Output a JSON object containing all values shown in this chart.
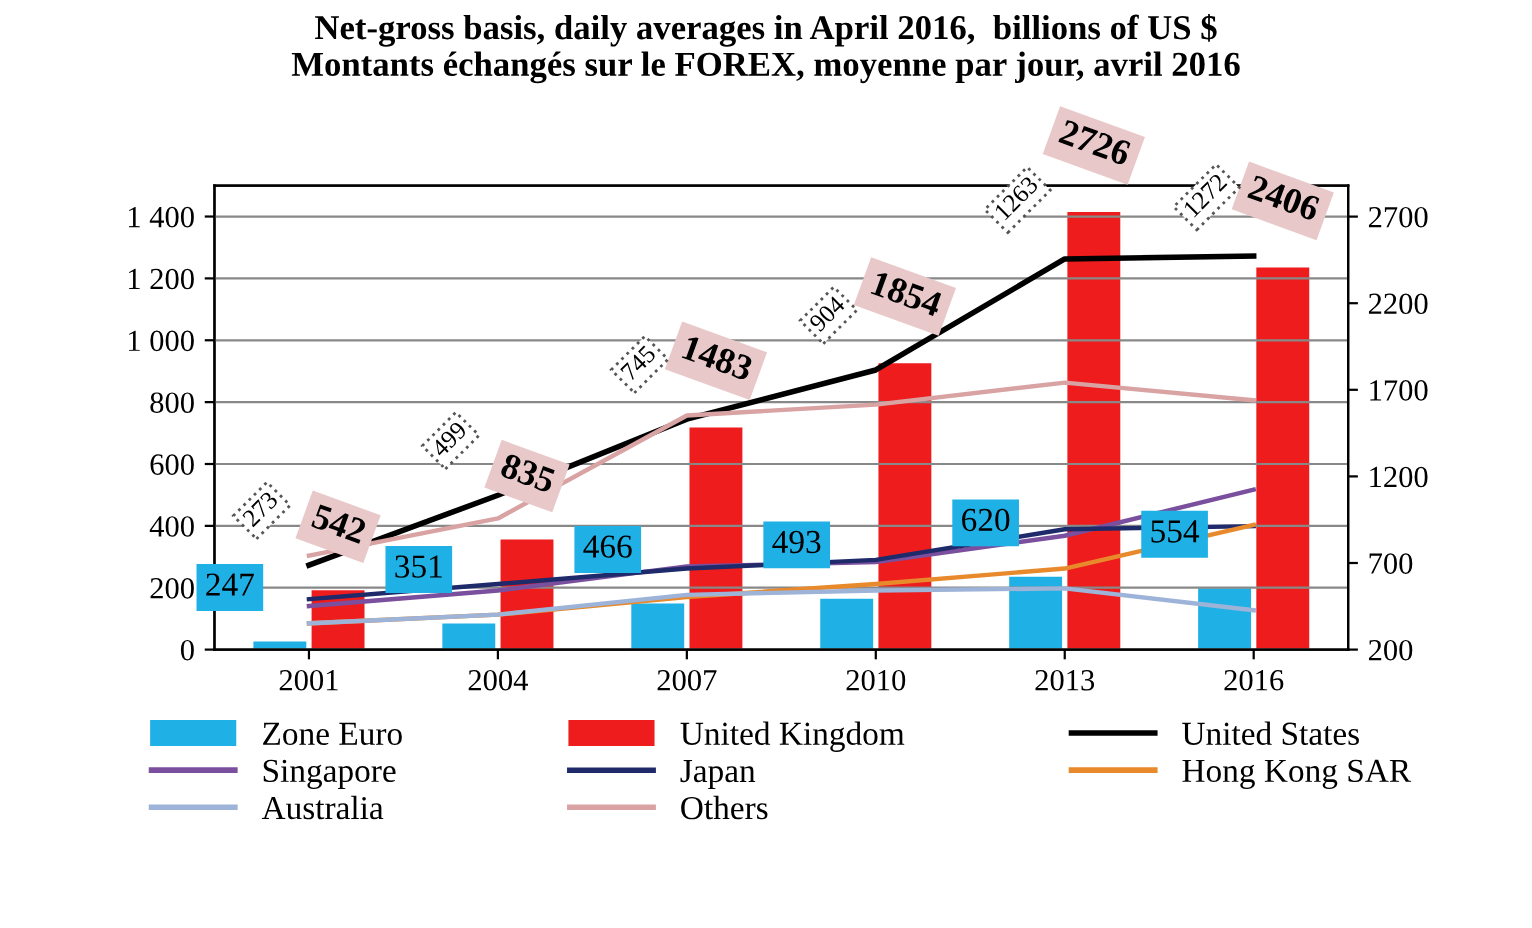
{
  "chart_data": {
    "type": "bar",
    "title": "Net-gross basis, daily averages in April 2016,  billions of US $\nMontants échangés sur le FOREX, moyenne par jour, avril 2016",
    "categories": [
      "2001",
      "2004",
      "2007",
      "2010",
      "2013",
      "2016"
    ],
    "series": [
      {
        "name": "Zone Euro",
        "axis": "y2",
        "color": "#1fb0e6",
        "values": [
          247,
          351,
          466,
          493,
          620,
          554
        ],
        "value_labels": [
          "247",
          "351",
          "466",
          "493",
          "620",
          "554"
        ]
      },
      {
        "name": "United Kingdom",
        "axis": "y2",
        "color": "#ee1c1c",
        "values": [
          542,
          835,
          1483,
          1854,
          2726,
          2406
        ],
        "value_labels": [
          "542",
          "835",
          "1483",
          "1854",
          "2726",
          "2406"
        ]
      },
      {
        "name": "United States",
        "type": "line",
        "color": "#000000",
        "values": [
          273,
          499,
          745,
          904,
          1263,
          1272
        ],
        "value_labels": [
          "273",
          "499",
          "745",
          "904",
          "1263",
          "1272"
        ]
      },
      {
        "name": "Singapore",
        "type": "line",
        "color": "#7a4f9e",
        "values": [
          141,
          191,
          269,
          283,
          368,
          517
        ]
      },
      {
        "name": "Japan",
        "type": "line",
        "color": "#1f2a6b",
        "values": [
          163,
          212,
          262,
          290,
          389,
          399
        ]
      },
      {
        "name": "Hong Kong SAR",
        "type": "line",
        "color": "#e8892c",
        "values": [
          85,
          113,
          170,
          212,
          262,
          403
        ]
      },
      {
        "name": "Australia",
        "type": "line",
        "color": "#9db3d8",
        "values": [
          85,
          113,
          177,
          191,
          198,
          127
        ]
      },
      {
        "name": "Others",
        "type": "line",
        "color": "#d9a3a3",
        "values": [
          304,
          424,
          757,
          792,
          863,
          806
        ]
      }
    ],
    "ylim": [
      0,
      1500
    ],
    "yticks": [
      0,
      {
        "value": 200,
        "label": "200"
      },
      400,
      600,
      800,
      {
        "value": 1000,
        "label": "1 000"
      },
      {
        "value": 1200,
        "label": "1 200"
      },
      {
        "value": 1400,
        "label": "1 400"
      }
    ],
    "y2lim": [
      200,
      2879
    ],
    "y2ticks": [
      200,
      700,
      1200,
      1700,
      2200,
      2700
    ],
    "grid": "y",
    "legend": "bottom"
  }
}
